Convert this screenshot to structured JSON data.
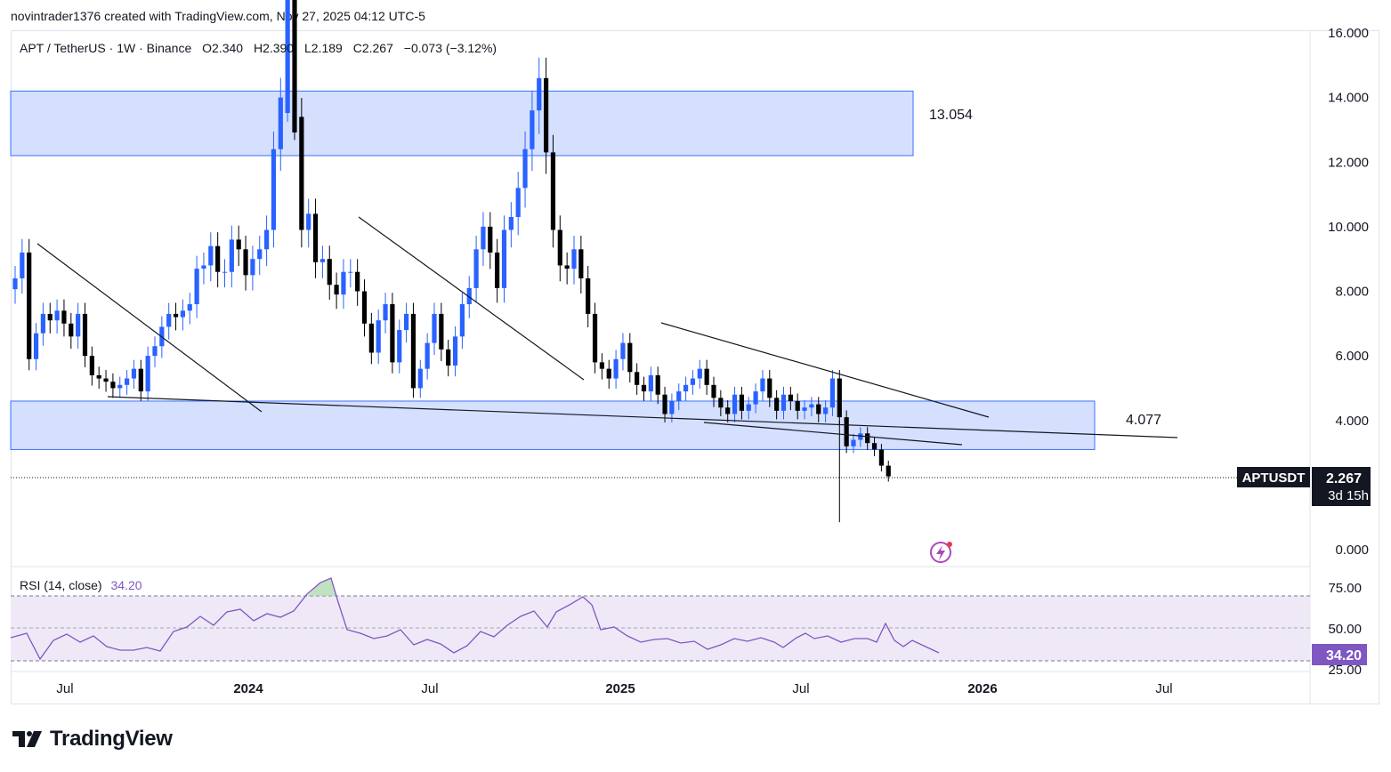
{
  "header": {
    "attribution": "novintrader1376 created with TradingView.com, Nov 27, 2025 04:12 UTC-5"
  },
  "legend": {
    "symbol": "APT / TetherUS · 1W · Binance",
    "open": "O2.340",
    "high": "H2.390",
    "low": "L2.189",
    "close": "C2.267",
    "change": "−0.073 (−3.12%)"
  },
  "price_axis": {
    "ticks": [
      "16.000",
      "14.000",
      "12.000",
      "10.000",
      "8.000",
      "6.000",
      "4.000",
      "0.000"
    ]
  },
  "rsi_axis": {
    "ticks": [
      "75.00",
      "50.00",
      "25.00"
    ]
  },
  "time_axis": {
    "ticks": [
      "Jul",
      "2024",
      "Jul",
      "2025",
      "Jul",
      "2026",
      "Jul"
    ]
  },
  "annotations": {
    "upper_zone_label": "13.054",
    "lower_zone_label": "4.077"
  },
  "price_badge": {
    "symbol": "APTUSDT",
    "price": "2.267",
    "countdown": "3d 15h"
  },
  "rsi": {
    "label": "RSI (14, close)",
    "value": "34.20",
    "color": "#7e57c2"
  },
  "footer": {
    "brand": "TradingView"
  },
  "colors": {
    "up": "#2962ff",
    "down": "#000000",
    "zone_fill": "#d1ddff",
    "zone_border": "#2962ff",
    "rsi_line": "#7e57c2",
    "rsi_band": "#ede7f6"
  },
  "chart_data": [
    {
      "type": "candlestick",
      "title": "APT / TetherUS · 1W · Binance",
      "ylim": [
        0,
        16
      ],
      "x_ticks": [
        "Jul",
        "2024",
        "Jul",
        "2025",
        "Jul",
        "2026",
        "Jul"
      ],
      "last": {
        "open": 2.34,
        "high": 2.39,
        "low": 2.189,
        "close": 2.267
      },
      "zones": [
        {
          "label": "13.054",
          "bottom": 12.2,
          "top": 14.2
        },
        {
          "label": "4.077",
          "bottom": 3.1,
          "top": 4.6
        }
      ],
      "close_series": [
        8.4,
        9.2,
        5.9,
        6.7,
        7.3,
        7.1,
        7.4,
        7.0,
        6.6,
        7.3,
        6.0,
        5.4,
        5.3,
        5.2,
        5.0,
        5.1,
        5.3,
        5.6,
        4.9,
        6.0,
        6.3,
        6.9,
        7.3,
        7.2,
        7.4,
        7.6,
        8.7,
        8.8,
        9.4,
        8.6,
        8.6,
        9.6,
        9.3,
        8.5,
        9.0,
        9.3,
        9.9,
        12.4,
        14.0,
        17.5,
        13.4,
        9.9,
        10.4,
        8.9,
        9.0,
        8.2,
        7.9,
        8.6,
        8.6,
        8.0,
        7.0,
        6.1,
        7.1,
        7.6,
        5.8,
        6.8,
        7.3,
        5.0,
        5.6,
        6.4,
        7.3,
        6.2,
        5.7,
        6.6,
        7.6,
        8.1,
        9.3,
        10.0,
        9.2,
        8.1,
        9.9,
        10.3,
        11.2,
        12.4,
        13.6,
        14.6,
        12.3,
        9.9,
        8.8,
        8.7,
        9.3,
        8.4,
        7.3,
        5.8,
        5.6,
        5.3,
        5.9,
        6.4,
        5.5,
        5.1,
        4.9,
        5.4,
        4.8,
        4.2,
        4.6,
        4.9,
        5.1,
        5.3,
        5.6,
        5.1,
        4.7,
        4.4,
        4.2,
        4.8,
        4.3,
        4.5,
        4.9,
        5.3,
        4.7,
        4.3,
        4.8,
        4.6,
        4.3,
        4.4,
        4.5,
        4.2,
        4.4,
        5.3,
        4.1,
        3.2,
        3.4,
        3.6,
        3.3,
        3.1,
        2.6,
        2.27
      ]
    },
    {
      "type": "line",
      "title": "RSI (14, close)",
      "ylim": [
        25,
        75
      ],
      "levels": [
        70,
        50,
        30
      ],
      "last_value": 34.2
    }
  ]
}
